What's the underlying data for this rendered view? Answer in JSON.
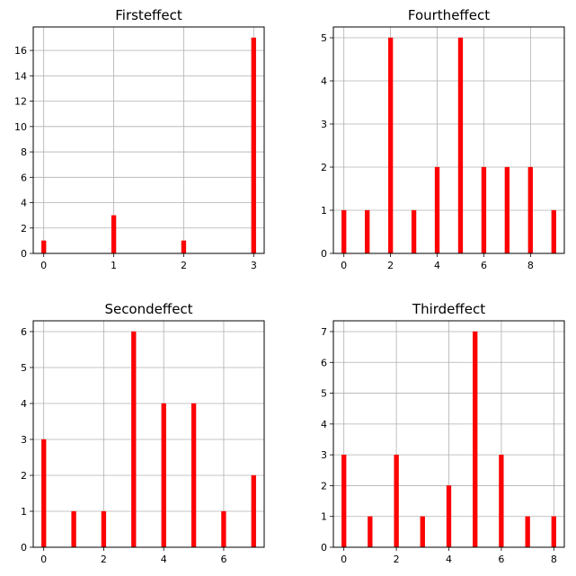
{
  "colors": {
    "bar": "#ff0000",
    "grid": "#b0b0b0",
    "frame": "#000000"
  },
  "chart_data": [
    {
      "type": "bar",
      "title": "Firsteffect",
      "xlabel": "",
      "ylabel": "",
      "x": [
        0,
        1,
        2,
        3
      ],
      "values": [
        1,
        3,
        1,
        17
      ],
      "xlim": [
        -0.15,
        3.15
      ],
      "ylim": [
        0,
        17.85
      ],
      "xticks": [
        0,
        1,
        2,
        3
      ],
      "yticks": [
        0,
        2,
        4,
        6,
        8,
        10,
        12,
        14,
        16
      ],
      "grid": true,
      "legend": "none"
    },
    {
      "type": "bar",
      "title": "Fourtheffect",
      "xlabel": "",
      "ylabel": "",
      "x": [
        0,
        1,
        2,
        3,
        4,
        5,
        6,
        7,
        8,
        9
      ],
      "values": [
        1,
        1,
        5,
        1,
        2,
        5,
        2,
        2,
        2,
        1
      ],
      "xlim": [
        -0.45,
        9.45
      ],
      "ylim": [
        0,
        5.25
      ],
      "xticks": [
        0,
        2,
        4,
        6,
        8
      ],
      "yticks": [
        0,
        1,
        2,
        3,
        4,
        5
      ],
      "grid": true,
      "legend": "none"
    },
    {
      "type": "bar",
      "title": "Secondeffect",
      "xlabel": "",
      "ylabel": "",
      "x": [
        0,
        1,
        2,
        3,
        4,
        5,
        6,
        7
      ],
      "values": [
        3,
        1,
        1,
        6,
        4,
        4,
        1,
        2
      ],
      "xlim": [
        -0.35,
        7.35
      ],
      "ylim": [
        0,
        6.3
      ],
      "xticks": [
        0,
        2,
        4,
        6
      ],
      "yticks": [
        0,
        1,
        2,
        3,
        4,
        5,
        6
      ],
      "grid": true,
      "legend": "none"
    },
    {
      "type": "bar",
      "title": "Thirdeffect",
      "xlabel": "",
      "ylabel": "",
      "x": [
        0,
        1,
        2,
        3,
        4,
        5,
        6,
        7,
        8
      ],
      "values": [
        3,
        1,
        3,
        1,
        2,
        7,
        3,
        1,
        1
      ],
      "xlim": [
        -0.4,
        8.4
      ],
      "ylim": [
        0,
        7.35
      ],
      "xticks": [
        0,
        2,
        4,
        6,
        8
      ],
      "yticks": [
        0,
        1,
        2,
        3,
        4,
        5,
        6,
        7
      ],
      "grid": true,
      "legend": "none"
    }
  ]
}
